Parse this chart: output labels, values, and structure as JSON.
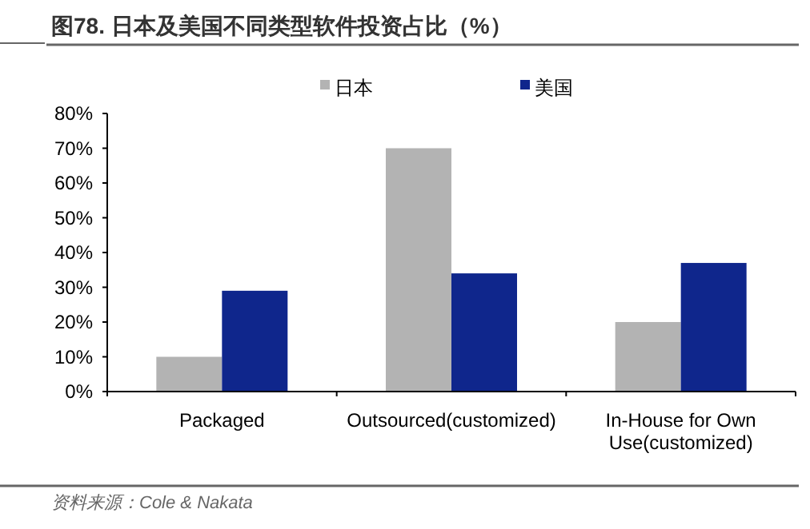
{
  "chart_data": {
    "type": "bar",
    "title": "图78. 日本及美国不同类型软件投资占比（%）",
    "categories": [
      "Packaged",
      "Outsourced(customized)",
      "In-House for Own Use(customized)"
    ],
    "series": [
      {
        "name": "日本",
        "color": "#b3b3b3",
        "values": [
          10,
          70,
          20
        ]
      },
      {
        "name": "美国",
        "color": "#0f268c",
        "values": [
          29,
          34,
          37
        ]
      }
    ],
    "ylim": [
      0,
      80
    ],
    "yticks": [
      {
        "value": 0,
        "label": "0%"
      },
      {
        "value": 10,
        "label": "10%"
      },
      {
        "value": 20,
        "label": "20%"
      },
      {
        "value": 30,
        "label": "30%"
      },
      {
        "value": 40,
        "label": "40%"
      },
      {
        "value": 50,
        "label": "50%"
      },
      {
        "value": 60,
        "label": "60%"
      },
      {
        "value": 70,
        "label": "70%"
      },
      {
        "value": 80,
        "label": "80%"
      }
    ],
    "legend": "top",
    "annotations": [
      "资料来源：Cole & Nakata"
    ]
  }
}
